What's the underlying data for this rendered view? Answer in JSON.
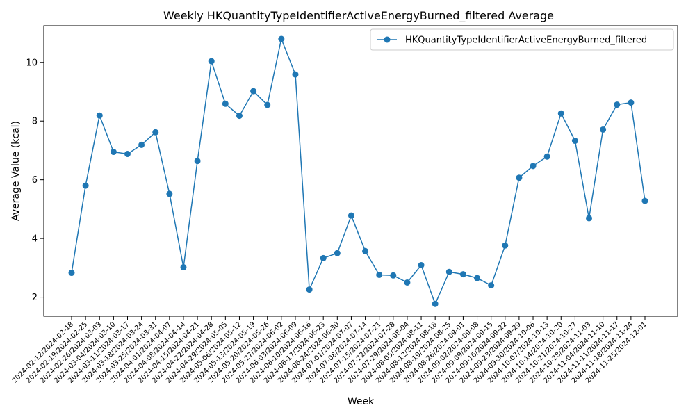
{
  "chart_data": {
    "type": "line",
    "title": "Weekly HKQuantityTypeIdentifierActiveEnergyBurned_filtered Average",
    "xlabel": "Week",
    "ylabel": "Average Value (kcal)",
    "ylim": [
      1.35,
      11.25
    ],
    "yticks": [
      2,
      4,
      6,
      8,
      10
    ],
    "grid": false,
    "legend_position": "top-right",
    "colors": {
      "series": "#1f77b4"
    },
    "categories": [
      "2024-02-12/2024-02-18",
      "2024-02-19/2024-02-25",
      "2024-02-26/2024-03-03",
      "2024-03-04/2024-03-10",
      "2024-03-11/2024-03-17",
      "2024-03-18/2024-03-24",
      "2024-03-25/2024-03-31",
      "2024-04-01/2024-04-07",
      "2024-04-08/2024-04-14",
      "2024-04-15/2024-04-21",
      "2024-04-22/2024-04-28",
      "2024-04-29/2024-05-05",
      "2024-05-06/2024-05-12",
      "2024-05-13/2024-05-19",
      "2024-05-20/2024-05-26",
      "2024-05-27/2024-06-02",
      "2024-06-03/2024-06-09",
      "2024-06-10/2024-06-16",
      "2024-06-17/2024-06-23",
      "2024-06-24/2024-06-30",
      "2024-07-01/2024-07-07",
      "2024-07-08/2024-07-14",
      "2024-07-15/2024-07-21",
      "2024-07-22/2024-07-28",
      "2024-07-29/2024-08-04",
      "2024-08-05/2024-08-11",
      "2024-08-12/2024-08-18",
      "2024-08-19/2024-08-25",
      "2024-08-26/2024-09-01",
      "2024-09-02/2024-09-08",
      "2024-09-09/2024-09-15",
      "2024-09-16/2024-09-22",
      "2024-09-23/2024-09-29",
      "2024-09-30/2024-10-06",
      "2024-10-07/2024-10-13",
      "2024-10-14/2024-10-20",
      "2024-10-21/2024-10-27",
      "2024-10-28/2024-11-03",
      "2024-11-04/2024-11-10",
      "2024-11-11/2024-11-17",
      "2024-11-18/2024-11-24",
      "2024-11-25/2024-12-01"
    ],
    "series": [
      {
        "name": "HKQuantityTypeIdentifierActiveEnergyBurned_filtered",
        "values": [
          2.83,
          5.8,
          8.19,
          6.95,
          6.88,
          7.19,
          7.62,
          5.52,
          3.02,
          6.64,
          10.04,
          8.59,
          8.18,
          9.02,
          8.55,
          10.8,
          9.59,
          2.26,
          3.33,
          3.5,
          4.78,
          3.57,
          2.76,
          2.74,
          2.5,
          3.09,
          1.77,
          2.86,
          2.78,
          2.65,
          2.4,
          3.76,
          6.07,
          6.47,
          6.79,
          8.26,
          7.33,
          4.69,
          7.71,
          8.56,
          8.63,
          5.28
        ]
      }
    ]
  }
}
